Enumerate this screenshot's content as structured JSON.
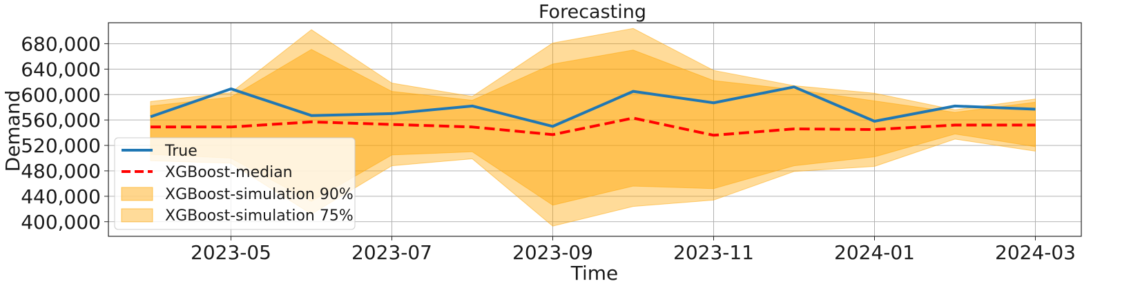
{
  "chart_data": {
    "type": "line",
    "title": "Forecasting",
    "xlabel": "Time",
    "ylabel": "Demand",
    "x_ticks": [
      "2023-05",
      "2023-07",
      "2023-09",
      "2023-11",
      "2024-01",
      "2024-03"
    ],
    "y_ticks": [
      "400,000",
      "440,000",
      "480,000",
      "520,000",
      "560,000",
      "600,000",
      "640,000",
      "680,000"
    ],
    "ylim": [
      377000,
      713000
    ],
    "x": [
      "2023-04",
      "2023-05",
      "2023-06",
      "2023-07",
      "2023-08",
      "2023-09",
      "2023-10",
      "2023-11",
      "2023-12",
      "2024-01",
      "2024-02",
      "2024-03"
    ],
    "grid": true,
    "legend_position": "lower-left",
    "series": [
      {
        "name": "True",
        "kind": "line",
        "color": "#1f77b4",
        "values": [
          565000,
          609000,
          567000,
          570000,
          582000,
          550000,
          605000,
          587000,
          612000,
          558000,
          582000,
          577000
        ]
      },
      {
        "name": "XGBoost-median",
        "kind": "dashed-line",
        "color": "#ff0000",
        "values": [
          549000,
          549000,
          557000,
          553000,
          549000,
          537000,
          563000,
          536000,
          546000,
          545000,
          552000,
          552000
        ]
      },
      {
        "name": "XGBoost-simulation 90%",
        "kind": "band",
        "color": "#ffa500",
        "lower": [
          506000,
          500000,
          432000,
          505000,
          510000,
          426000,
          456000,
          452000,
          488000,
          502000,
          538000,
          518000
        ],
        "upper": [
          582000,
          596000,
          671000,
          605000,
          591000,
          648000,
          670000,
          622000,
          608000,
          590000,
          572000,
          588000
        ]
      },
      {
        "name": "XGBoost-simulation 75%",
        "kind": "band",
        "color": "#ffa500",
        "lower": [
          496000,
          492000,
          412000,
          488000,
          499000,
          393000,
          424000,
          434000,
          479000,
          487000,
          530000,
          511000
        ],
        "upper": [
          589000,
          603000,
          702000,
          618000,
          597000,
          681000,
          704000,
          638000,
          614000,
          602000,
          576000,
          593000
        ]
      }
    ]
  }
}
